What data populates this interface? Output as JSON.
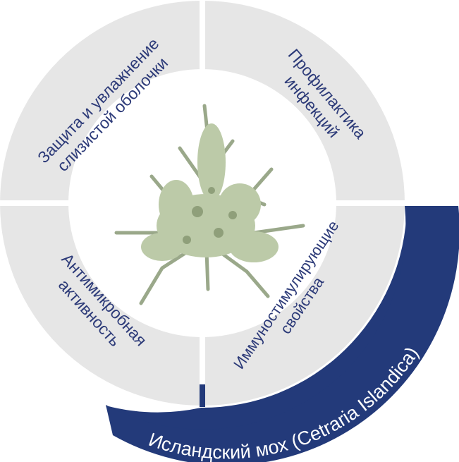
{
  "diagram": {
    "center_image_label": "lichen",
    "segments": {
      "top_left": {
        "line1": "Защита и увлажнение",
        "line2": "слизистой оболочки"
      },
      "top_right": {
        "line1": "Профилактика",
        "line2": "инфекций"
      },
      "bottom_left": {
        "line1": "Антимикробная",
        "line2": "активность"
      },
      "bottom_right": {
        "line1": "Иммуностимулирующие",
        "line2": "свойства"
      }
    },
    "banner": {
      "text": "Исландский мох (Cetraria Islandica)"
    },
    "colors": {
      "segment_fill": "#e6e6e6",
      "gap": "#ffffff",
      "text": "#2c3a78",
      "banner_fill": "#233a7a",
      "banner_text": "#ffffff"
    }
  }
}
